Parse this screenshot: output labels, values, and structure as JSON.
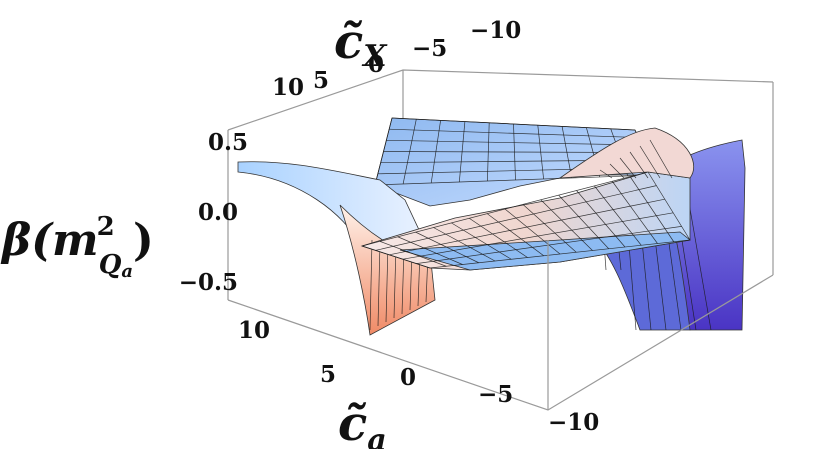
{
  "chart_data": {
    "type": "surface3d",
    "title": "",
    "x_axis": {
      "label_main": "c̃",
      "label_sub": "a",
      "ticks": [
        "10",
        "5",
        "0",
        "−5",
        "−10"
      ],
      "range": [
        -10,
        10
      ]
    },
    "y_axis": {
      "label_main": "c̃",
      "label_sub": "X",
      "ticks": [
        "10",
        "5",
        "0",
        "−5",
        "−10"
      ],
      "range": [
        -10,
        10
      ]
    },
    "z_axis": {
      "label_func": "β(m",
      "label_sup": "2",
      "label_sub": "Q",
      "label_subsub": "a",
      "label_close": ")",
      "ticks": [
        "0.5",
        "0.0",
        "−0.5"
      ],
      "range": [
        -0.6,
        0.6
      ]
    },
    "surface_grid": {
      "x": [
        -10,
        -8,
        -6,
        -4,
        -2,
        0,
        2,
        4,
        6,
        8,
        10
      ],
      "y": [
        -10,
        -8,
        -6,
        -4,
        -2,
        0,
        2,
        4,
        6,
        8,
        10
      ],
      "z_formula_note": "",
      "approx_levels": {
        "plateau_high": 0.4,
        "plateau_low": -0.05,
        "cliff_low": -0.55
      }
    },
    "colors": {
      "surface_light": "#bfe0ff",
      "surface_mid": "#7fb5f2",
      "warm": "#f4b28c",
      "deep": "#5a4ed1",
      "box": "#999999",
      "mesh": "#1a1a1a"
    }
  }
}
